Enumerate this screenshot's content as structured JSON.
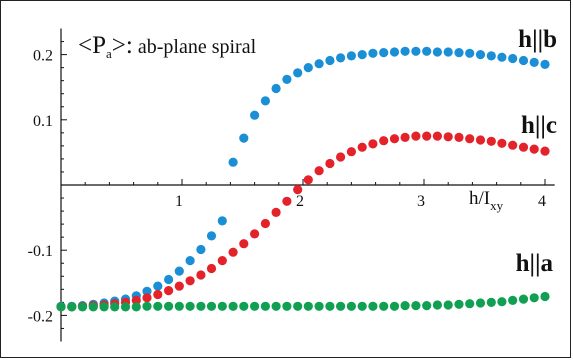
{
  "chart_data": {
    "type": "scatter",
    "title_main": "<P",
    "title_sub": "a",
    "title_close": ">:",
    "title_rest": " ab-plane spiral",
    "xlabel_main": "h/I",
    "xlabel_sub": "xy",
    "xlim": [
      0,
      4.08
    ],
    "ylim": [
      -0.24,
      0.24
    ],
    "x_ticks": [
      {
        "v": 1,
        "label": "1"
      },
      {
        "v": 2,
        "label": "2"
      },
      {
        "v": 3,
        "label": "3"
      },
      {
        "v": 4,
        "label": "4"
      }
    ],
    "y_ticks": [
      {
        "v": 0.2,
        "label": "0.2"
      },
      {
        "v": 0.1,
        "label": "0.1"
      },
      {
        "v": -0.1,
        "label": "-0.1"
      },
      {
        "v": -0.2,
        "label": "-0.2"
      }
    ],
    "series": [
      {
        "name": "h||b",
        "color": "#1a8fd6",
        "x": [
          0.0,
          0.089,
          0.178,
          0.267,
          0.356,
          0.444,
          0.533,
          0.622,
          0.711,
          0.8,
          0.889,
          0.978,
          1.067,
          1.156,
          1.244,
          1.333,
          1.422,
          1.511,
          1.6,
          1.689,
          1.778,
          1.867,
          1.956,
          2.044,
          2.133,
          2.222,
          2.311,
          2.4,
          2.489,
          2.578,
          2.667,
          2.756,
          2.844,
          2.933,
          3.022,
          3.111,
          3.2,
          3.289,
          3.378,
          3.467,
          3.556,
          3.644,
          3.733,
          3.822,
          3.911,
          4.0
        ],
        "y": [
          -0.186,
          -0.186,
          -0.185,
          -0.183,
          -0.181,
          -0.178,
          -0.175,
          -0.17,
          -0.163,
          -0.155,
          -0.145,
          -0.132,
          -0.116,
          -0.099,
          -0.078,
          -0.055,
          0.035,
          0.072,
          0.107,
          0.129,
          0.148,
          0.162,
          0.172,
          0.18,
          0.186,
          0.191,
          0.195,
          0.198,
          0.2,
          0.202,
          0.203,
          0.204,
          0.205,
          0.205,
          0.205,
          0.204,
          0.204,
          0.203,
          0.202,
          0.2,
          0.198,
          0.196,
          0.194,
          0.191,
          0.188,
          0.185
        ],
        "label": "h||b"
      },
      {
        "name": "h||c",
        "color": "#e3222a",
        "x": [
          0.0,
          0.089,
          0.178,
          0.267,
          0.356,
          0.444,
          0.533,
          0.622,
          0.711,
          0.8,
          0.889,
          0.978,
          1.067,
          1.156,
          1.244,
          1.333,
          1.422,
          1.511,
          1.6,
          1.689,
          1.778,
          1.867,
          1.956,
          2.044,
          2.133,
          2.222,
          2.311,
          2.4,
          2.489,
          2.578,
          2.667,
          2.756,
          2.844,
          2.933,
          3.022,
          3.111,
          3.2,
          3.289,
          3.378,
          3.467,
          3.556,
          3.644,
          3.733,
          3.822,
          3.911,
          4.0
        ],
        "y": [
          -0.187,
          -0.187,
          -0.186,
          -0.185,
          -0.184,
          -0.182,
          -0.18,
          -0.177,
          -0.173,
          -0.168,
          -0.162,
          -0.155,
          -0.147,
          -0.138,
          -0.128,
          -0.116,
          -0.103,
          -0.09,
          -0.075,
          -0.059,
          -0.042,
          -0.025,
          -0.007,
          0.008,
          0.022,
          0.033,
          0.043,
          0.051,
          0.058,
          0.063,
          0.068,
          0.071,
          0.073,
          0.075,
          0.075,
          0.075,
          0.074,
          0.073,
          0.071,
          0.069,
          0.067,
          0.064,
          0.061,
          0.058,
          0.055,
          0.052
        ],
        "label": "h||c"
      },
      {
        "name": "h||a",
        "color": "#11a052",
        "x": [
          0.0,
          0.089,
          0.178,
          0.267,
          0.356,
          0.444,
          0.533,
          0.622,
          0.711,
          0.8,
          0.889,
          0.978,
          1.067,
          1.156,
          1.244,
          1.333,
          1.422,
          1.511,
          1.6,
          1.689,
          1.778,
          1.867,
          1.956,
          2.044,
          2.133,
          2.222,
          2.311,
          2.4,
          2.489,
          2.578,
          2.667,
          2.756,
          2.844,
          2.933,
          3.022,
          3.111,
          3.2,
          3.289,
          3.378,
          3.467,
          3.556,
          3.644,
          3.733,
          3.822,
          3.911,
          4.0
        ],
        "y": [
          -0.187,
          -0.187,
          -0.187,
          -0.187,
          -0.187,
          -0.187,
          -0.187,
          -0.187,
          -0.186,
          -0.186,
          -0.186,
          -0.186,
          -0.186,
          -0.186,
          -0.186,
          -0.186,
          -0.186,
          -0.186,
          -0.186,
          -0.186,
          -0.186,
          -0.186,
          -0.186,
          -0.186,
          -0.186,
          -0.186,
          -0.186,
          -0.186,
          -0.186,
          -0.186,
          -0.186,
          -0.186,
          -0.185,
          -0.185,
          -0.185,
          -0.184,
          -0.184,
          -0.183,
          -0.182,
          -0.181,
          -0.18,
          -0.179,
          -0.177,
          -0.175,
          -0.173,
          -0.171
        ],
        "label": "h||a"
      }
    ]
  }
}
